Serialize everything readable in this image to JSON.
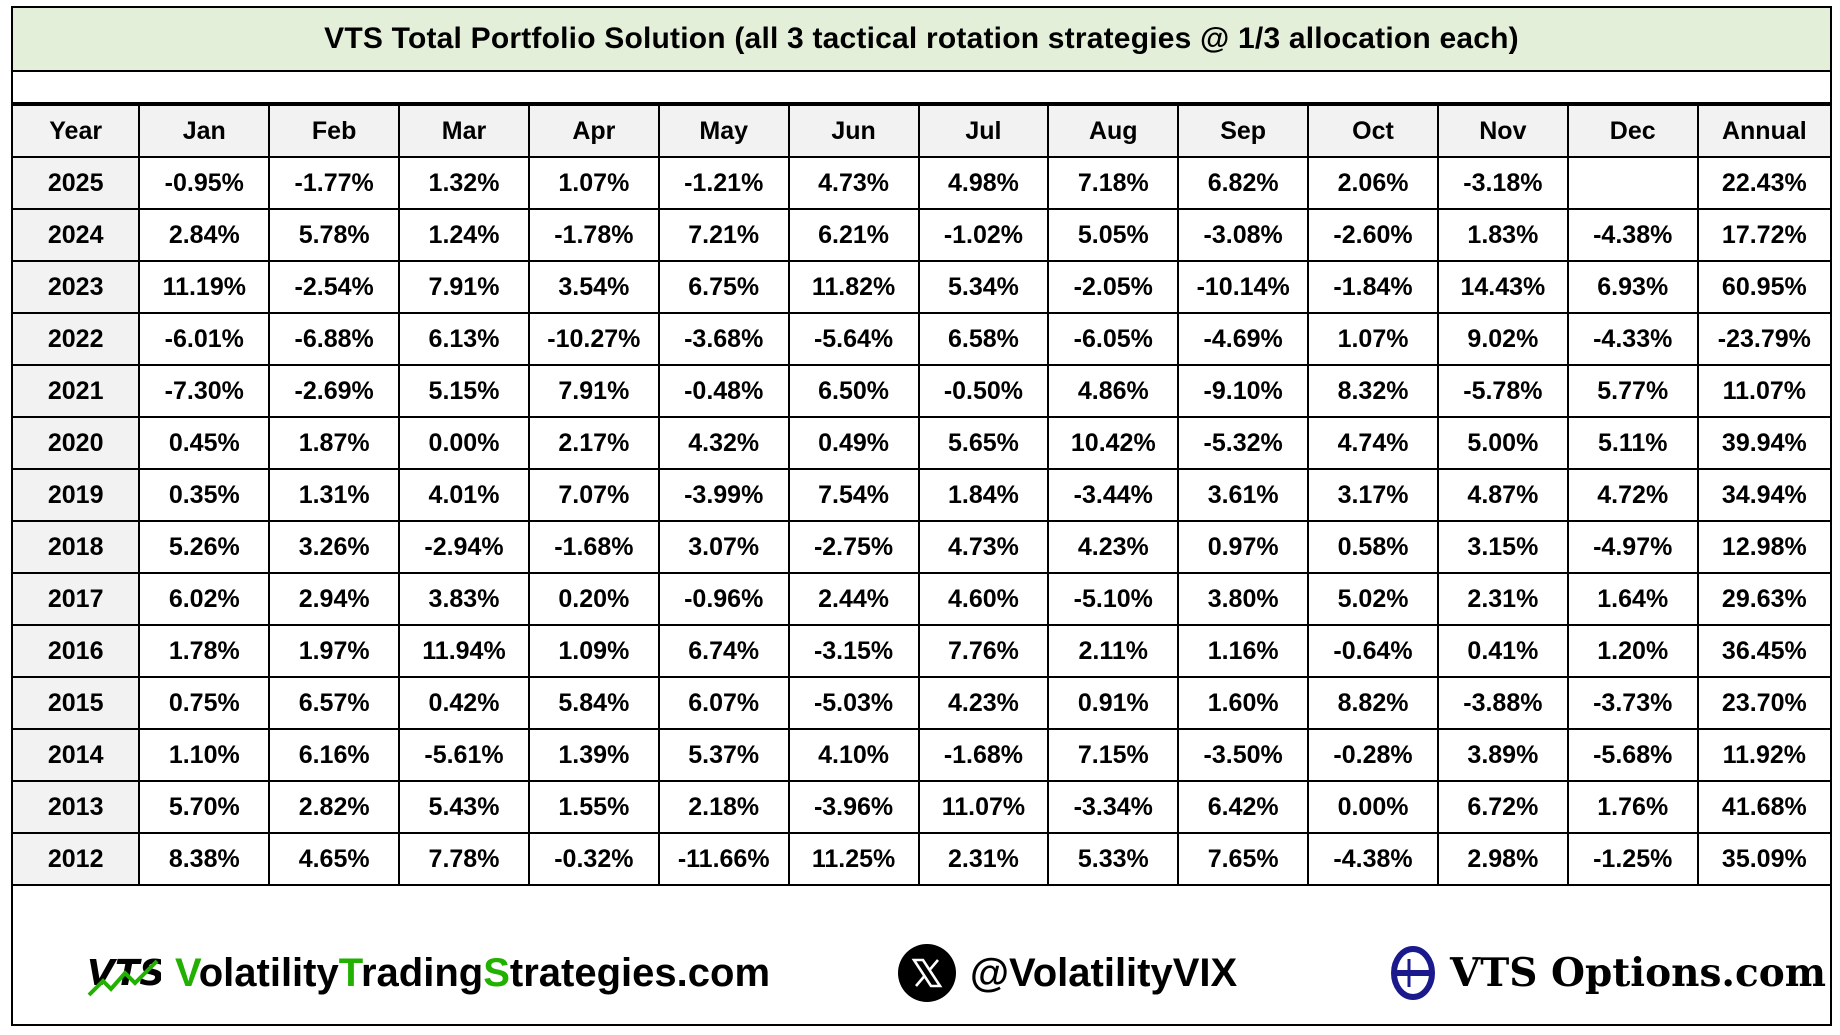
{
  "title": "VTS Total Portfolio Solution  (all 3 tactical rotation strategies @ 1/3 allocation each)",
  "table": {
    "headers": [
      "Year",
      "Jan",
      "Feb",
      "Mar",
      "Apr",
      "May",
      "Jun",
      "Jul",
      "Aug",
      "Sep",
      "Oct",
      "Nov",
      "Dec",
      "Annual"
    ],
    "rows": [
      [
        "2025",
        "-0.95%",
        "-1.77%",
        "1.32%",
        "1.07%",
        "-1.21%",
        "4.73%",
        "4.98%",
        "7.18%",
        "6.82%",
        "2.06%",
        "-3.18%",
        "",
        "22.43%"
      ],
      [
        "2024",
        "2.84%",
        "5.78%",
        "1.24%",
        "-1.78%",
        "7.21%",
        "6.21%",
        "-1.02%",
        "5.05%",
        "-3.08%",
        "-2.60%",
        "1.83%",
        "-4.38%",
        "17.72%"
      ],
      [
        "2023",
        "11.19%",
        "-2.54%",
        "7.91%",
        "3.54%",
        "6.75%",
        "11.82%",
        "5.34%",
        "-2.05%",
        "-10.14%",
        "-1.84%",
        "14.43%",
        "6.93%",
        "60.95%"
      ],
      [
        "2022",
        "-6.01%",
        "-6.88%",
        "6.13%",
        "-10.27%",
        "-3.68%",
        "-5.64%",
        "6.58%",
        "-6.05%",
        "-4.69%",
        "1.07%",
        "9.02%",
        "-4.33%",
        "-23.79%"
      ],
      [
        "2021",
        "-7.30%",
        "-2.69%",
        "5.15%",
        "7.91%",
        "-0.48%",
        "6.50%",
        "-0.50%",
        "4.86%",
        "-9.10%",
        "8.32%",
        "-5.78%",
        "5.77%",
        "11.07%"
      ],
      [
        "2020",
        "0.45%",
        "1.87%",
        "0.00%",
        "2.17%",
        "4.32%",
        "0.49%",
        "5.65%",
        "10.42%",
        "-5.32%",
        "4.74%",
        "5.00%",
        "5.11%",
        "39.94%"
      ],
      [
        "2019",
        "0.35%",
        "1.31%",
        "4.01%",
        "7.07%",
        "-3.99%",
        "7.54%",
        "1.84%",
        "-3.44%",
        "3.61%",
        "3.17%",
        "4.87%",
        "4.72%",
        "34.94%"
      ],
      [
        "2018",
        "5.26%",
        "3.26%",
        "-2.94%",
        "-1.68%",
        "3.07%",
        "-2.75%",
        "4.73%",
        "4.23%",
        "0.97%",
        "0.58%",
        "3.15%",
        "-4.97%",
        "12.98%"
      ],
      [
        "2017",
        "6.02%",
        "2.94%",
        "3.83%",
        "0.20%",
        "-0.96%",
        "2.44%",
        "4.60%",
        "-5.10%",
        "3.80%",
        "5.02%",
        "2.31%",
        "1.64%",
        "29.63%"
      ],
      [
        "2016",
        "1.78%",
        "1.97%",
        "11.94%",
        "1.09%",
        "6.74%",
        "-3.15%",
        "7.76%",
        "2.11%",
        "1.16%",
        "-0.64%",
        "0.41%",
        "1.20%",
        "36.45%"
      ],
      [
        "2015",
        "0.75%",
        "6.57%",
        "0.42%",
        "5.84%",
        "6.07%",
        "-5.03%",
        "4.23%",
        "0.91%",
        "1.60%",
        "8.82%",
        "-3.88%",
        "-3.73%",
        "23.70%"
      ],
      [
        "2014",
        "1.10%",
        "6.16%",
        "-5.61%",
        "1.39%",
        "5.37%",
        "4.10%",
        "-1.68%",
        "7.15%",
        "-3.50%",
        "-0.28%",
        "3.89%",
        "-5.68%",
        "11.92%"
      ],
      [
        "2013",
        "5.70%",
        "2.82%",
        "5.43%",
        "1.55%",
        "2.18%",
        "-3.96%",
        "11.07%",
        "-3.34%",
        "6.42%",
        "0.00%",
        "6.72%",
        "1.76%",
        "41.68%"
      ],
      [
        "2012",
        "8.38%",
        "4.65%",
        "7.78%",
        "-0.32%",
        "-11.66%",
        "11.25%",
        "2.31%",
        "5.33%",
        "7.65%",
        "-4.38%",
        "2.98%",
        "-1.25%",
        "35.09%"
      ]
    ]
  },
  "footer": {
    "vts_logo_text": "VTS",
    "site_parts": [
      {
        "text": "V",
        "color": "#22b100"
      },
      {
        "text": "olatility",
        "color": "#000000"
      },
      {
        "text": "T",
        "color": "#22b100"
      },
      {
        "text": "rading",
        "color": "#000000"
      },
      {
        "text": "S",
        "color": "#22b100"
      },
      {
        "text": "trategies.com",
        "color": "#000000"
      }
    ],
    "x_icon": "x-logo-icon",
    "handle": "@VolatilityVIX",
    "options_icon": "theta-icon",
    "options_site": "VTS Options.com"
  },
  "colors": {
    "title_bg": "#e3efd9",
    "header_bg": "#f2f2f2",
    "brand_green": "#22b100",
    "options_blue": "#1b1a8c"
  }
}
